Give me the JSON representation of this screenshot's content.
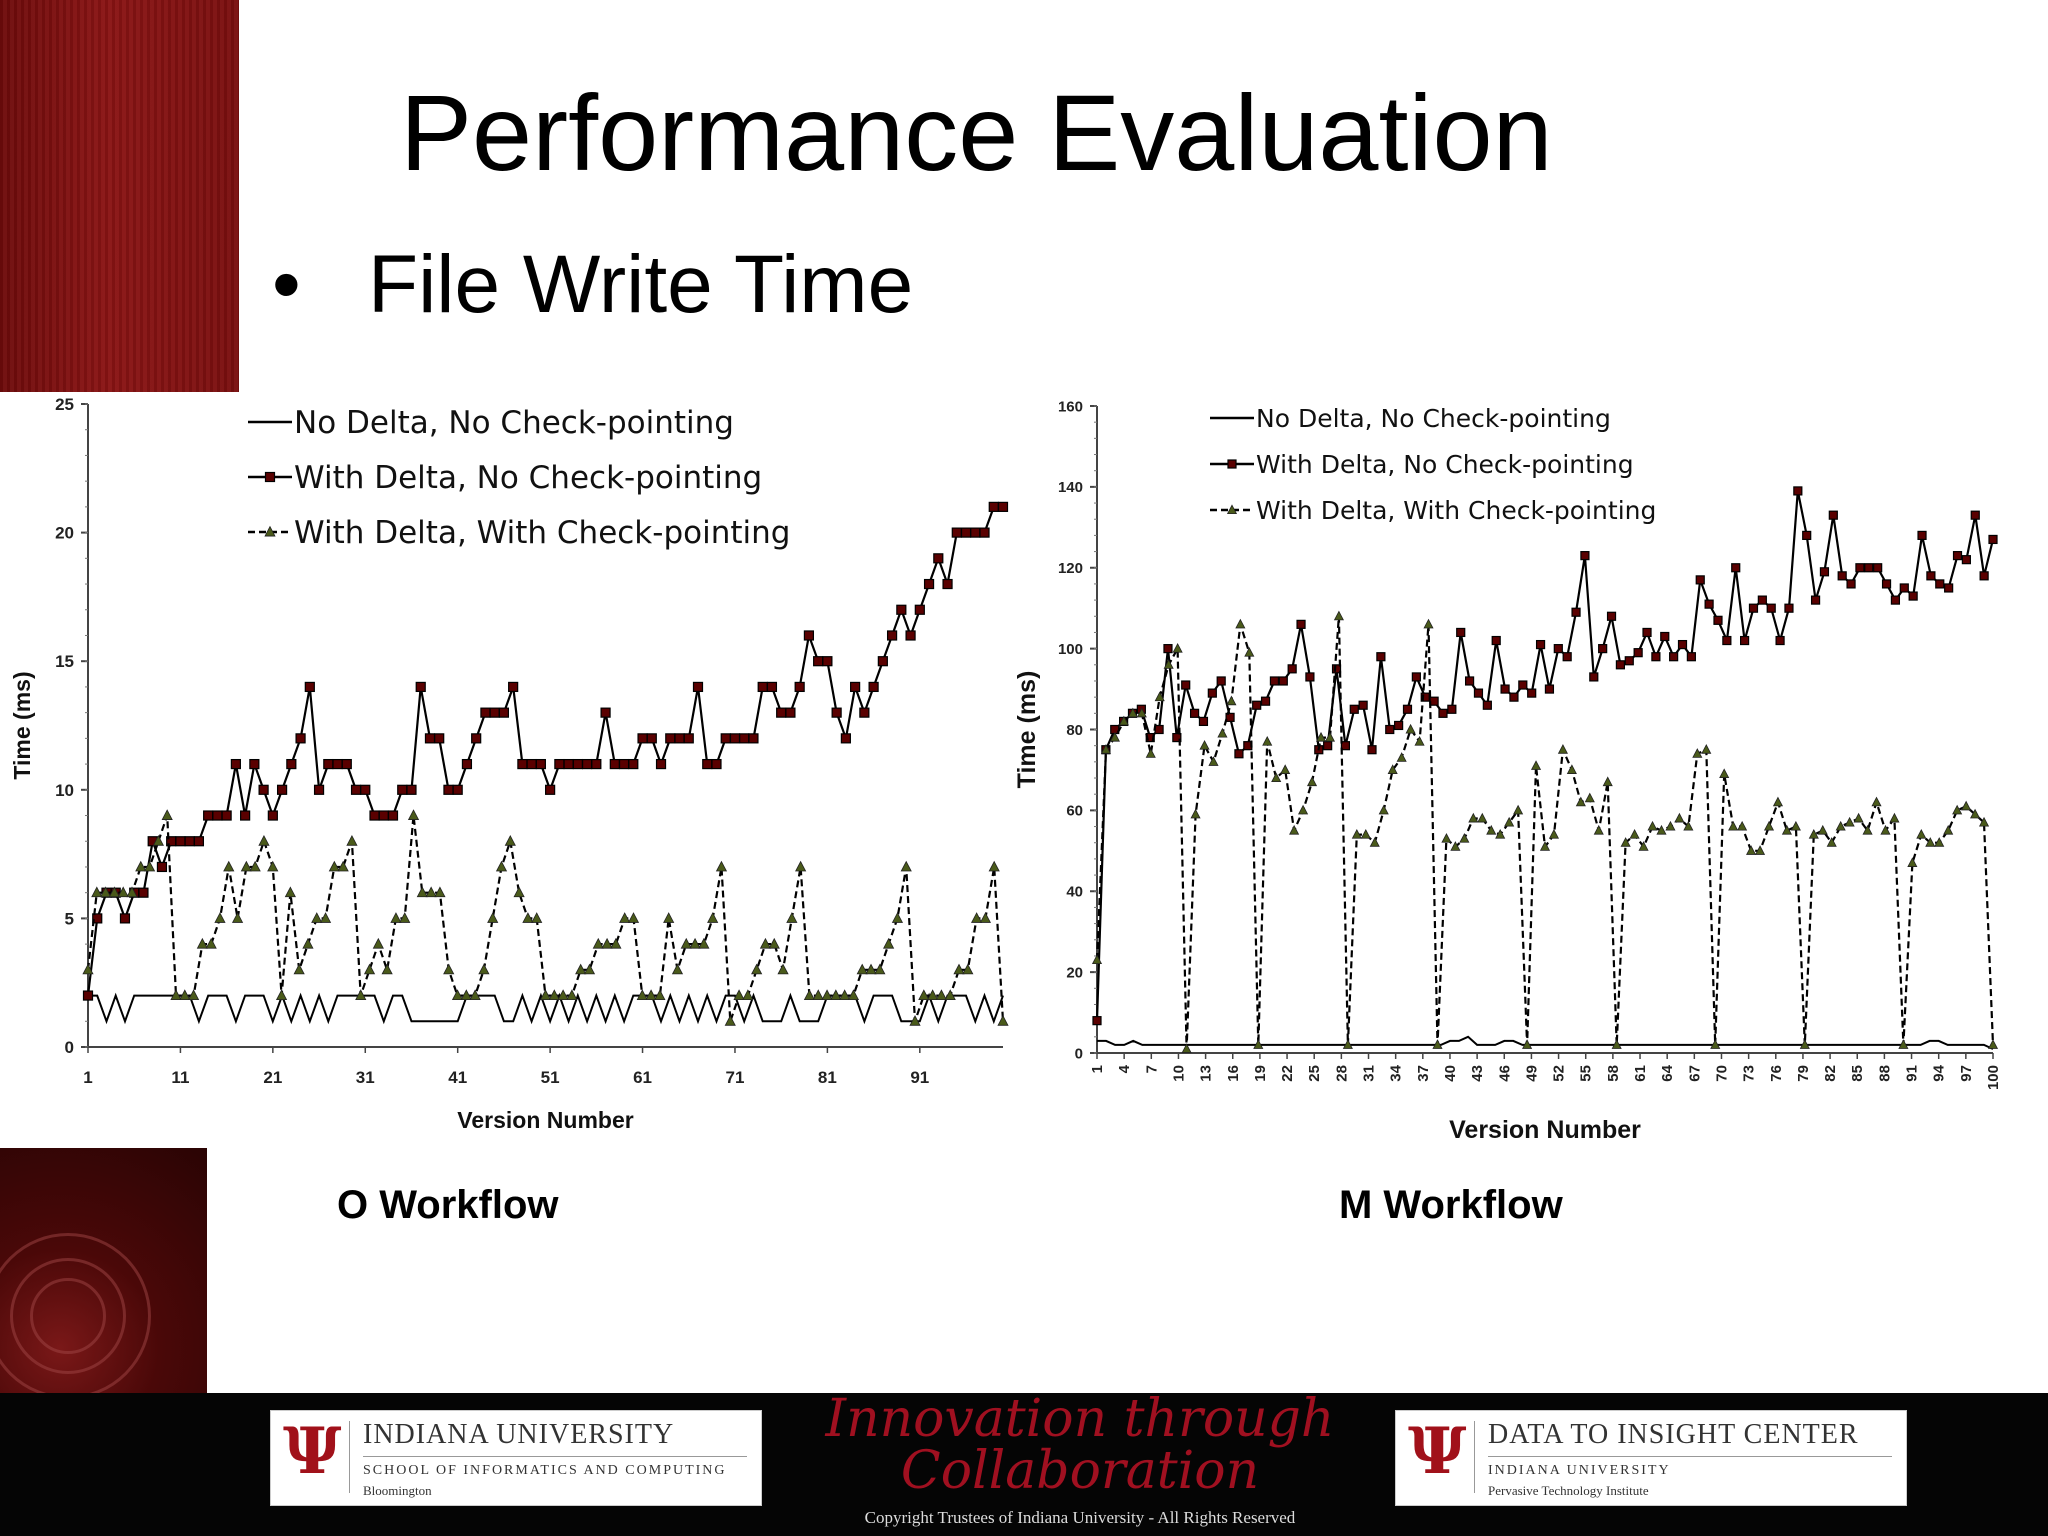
{
  "slide": {
    "title": "Performance Evaluation",
    "bullet": "File Write Time",
    "caption_left": "O Workflow",
    "caption_right": "M Workflow"
  },
  "colors": {
    "brand_red": "#7d1010",
    "series_square": "#5a0000",
    "series_triangle": "#4a5a1a",
    "footer_bg": "#050505"
  },
  "footer": {
    "iu_line1": "INDIANA UNIVERSITY",
    "iu_line2": "SCHOOL OF INFORMATICS AND COMPUTING",
    "iu_line3": "Bloomington",
    "tagline_line1": "Innovation through",
    "tagline_line2": "Collaboration",
    "copyright": "Copyright Trustees of Indiana University - All Rights Reserved",
    "dic_line1": "DATA TO INSIGHT CENTER",
    "dic_line2": "INDIANA UNIVERSITY",
    "dic_line3": "Pervasive Technology Institute",
    "trident_glyph": "Ψ"
  },
  "chart_data": [
    {
      "type": "line",
      "title": "",
      "xlabel": "Version Number",
      "ylabel": "Time (ms)",
      "xlim": [
        1,
        100
      ],
      "ylim": [
        0,
        25
      ],
      "yticks": [
        0,
        5,
        10,
        15,
        20,
        25
      ],
      "xtick_labels": [
        "1",
        "11",
        "21",
        "31",
        "41",
        "51",
        "61",
        "71",
        "81",
        "91"
      ],
      "legend_position": "top-left",
      "series": [
        {
          "name": "No Delta, No Check-pointing",
          "marker": "none",
          "dash": "solid",
          "values": [
            2,
            2,
            1,
            2,
            1,
            2,
            2,
            2,
            2,
            2,
            2,
            2,
            1,
            2,
            2,
            2,
            1,
            2,
            2,
            2,
            1,
            2,
            1,
            2,
            1,
            2,
            1,
            2,
            2,
            2,
            2,
            2,
            1,
            2,
            2,
            1,
            1,
            1,
            1,
            1,
            1,
            2,
            2,
            2,
            2,
            1,
            1,
            2,
            1,
            2,
            1,
            2,
            1,
            2,
            1,
            2,
            1,
            2,
            1,
            2,
            2,
            2,
            1,
            2,
            1,
            2,
            1,
            2,
            1,
            2,
            2,
            1,
            2,
            1,
            1,
            1,
            2,
            1,
            1,
            1,
            2,
            2,
            2,
            2,
            1,
            2,
            2,
            2,
            1,
            1,
            1,
            2,
            1,
            2,
            2,
            2,
            1,
            2,
            1,
            2
          ]
        },
        {
          "name": "With Delta, No Check-pointing",
          "marker": "square",
          "dash": "solid",
          "values": [
            2,
            5,
            6,
            6,
            5,
            6,
            6,
            8,
            7,
            8,
            8,
            8,
            8,
            9,
            9,
            9,
            11,
            9,
            11,
            10,
            9,
            10,
            11,
            12,
            14,
            10,
            11,
            11,
            11,
            10,
            10,
            9,
            9,
            9,
            10,
            10,
            14,
            12,
            12,
            10,
            10,
            11,
            12,
            13,
            13,
            13,
            14,
            11,
            11,
            11,
            10,
            11,
            11,
            11,
            11,
            11,
            13,
            11,
            11,
            11,
            12,
            12,
            11,
            12,
            12,
            12,
            14,
            11,
            11,
            12,
            12,
            12,
            12,
            14,
            14,
            13,
            13,
            14,
            16,
            15,
            15,
            13,
            12,
            14,
            13,
            14,
            15,
            16,
            17,
            16,
            17,
            18,
            19,
            18,
            20,
            20,
            20,
            20,
            21,
            21
          ]
        },
        {
          "name": "With Delta, With Check-pointing",
          "marker": "triangle",
          "dash": "dashed",
          "values": [
            3,
            6,
            6,
            6,
            6,
            6,
            7,
            7,
            8,
            9,
            2,
            2,
            2,
            4,
            4,
            5,
            7,
            5,
            7,
            7,
            8,
            7,
            2,
            6,
            3,
            4,
            5,
            5,
            7,
            7,
            8,
            2,
            3,
            4,
            3,
            5,
            5,
            9,
            6,
            6,
            6,
            3,
            2,
            2,
            2,
            3,
            5,
            7,
            8,
            6,
            5,
            5,
            2,
            2,
            2,
            2,
            3,
            3,
            4,
            4,
            4,
            5,
            5,
            2,
            2,
            2,
            5,
            3,
            4,
            4,
            4,
            5,
            7,
            1,
            2,
            2,
            3,
            4,
            4,
            3,
            5,
            7,
            2,
            2,
            2,
            2,
            2,
            2,
            3,
            3,
            3,
            4,
            5,
            7,
            1,
            2,
            2,
            2,
            2,
            3,
            3,
            5,
            5,
            7,
            1
          ]
        }
      ]
    },
    {
      "type": "line",
      "title": "",
      "xlabel": "Version Number",
      "ylabel": "Time (ms)",
      "xlim": [
        1,
        100
      ],
      "ylim": [
        0,
        160
      ],
      "yticks": [
        0,
        20,
        40,
        60,
        80,
        100,
        120,
        140,
        160
      ],
      "xtick_labels": [
        "1",
        "4",
        "7",
        "10",
        "13",
        "16",
        "19",
        "22",
        "25",
        "28",
        "31",
        "34",
        "37",
        "40",
        "43",
        "46",
        "49",
        "52",
        "55",
        "58",
        "61",
        "64",
        "67",
        "70",
        "73",
        "76",
        "79",
        "82",
        "85",
        "88",
        "91",
        "94",
        "97",
        "100"
      ],
      "legend_position": "top-left",
      "series": [
        {
          "name": "No Delta, No Check-pointing",
          "marker": "none",
          "dash": "solid",
          "values": [
            3,
            3,
            2,
            2,
            3,
            2,
            2,
            2,
            2,
            2,
            2,
            2,
            2,
            2,
            2,
            2,
            2,
            2,
            2,
            2,
            2,
            2,
            2,
            2,
            2,
            2,
            2,
            2,
            2,
            2,
            2,
            2,
            2,
            2,
            2,
            2,
            2,
            2,
            2,
            3,
            3,
            4,
            2,
            2,
            2,
            3,
            3,
            2,
            2,
            2,
            2,
            2,
            2,
            2,
            2,
            2,
            2,
            2,
            2,
            2,
            2,
            2,
            2,
            2,
            2,
            2,
            2,
            2,
            2,
            2,
            2,
            2,
            2,
            2,
            2,
            2,
            2,
            2,
            2,
            2,
            2,
            2,
            2,
            2,
            2,
            2,
            2,
            2,
            2,
            2,
            2,
            2,
            3,
            3,
            2,
            2,
            2,
            2,
            2,
            1
          ]
        },
        {
          "name": "With Delta, No Check-pointing",
          "marker": "square",
          "dash": "solid",
          "values": [
            8,
            75,
            80,
            82,
            84,
            85,
            78,
            80,
            100,
            78,
            91,
            84,
            82,
            89,
            92,
            83,
            74,
            76,
            86,
            87,
            92,
            92,
            95,
            106,
            93,
            75,
            76,
            95,
            76,
            85,
            86,
            75,
            98,
            80,
            81,
            85,
            93,
            88,
            87,
            84,
            85,
            104,
            92,
            89,
            86,
            102,
            90,
            88,
            91,
            89,
            101,
            90,
            100,
            98,
            109,
            123,
            93,
            100,
            108,
            96,
            97,
            99,
            104,
            98,
            103,
            98,
            101,
            98,
            117,
            111,
            107,
            102,
            120,
            102,
            110,
            112,
            110,
            102,
            110,
            139,
            128,
            112,
            119,
            133,
            118,
            116,
            120,
            120,
            120,
            116,
            112,
            115,
            113,
            128,
            118,
            116,
            115,
            123,
            122,
            133,
            118,
            127
          ]
        },
        {
          "name": "With Delta, With Check-pointing",
          "marker": "triangle",
          "dash": "dashed",
          "values": [
            23,
            75,
            78,
            82,
            84,
            84,
            74,
            88,
            96,
            100,
            1,
            59,
            76,
            72,
            79,
            87,
            106,
            99,
            2,
            77,
            68,
            70,
            55,
            60,
            67,
            78,
            78,
            108,
            2,
            54,
            54,
            52,
            60,
            70,
            73,
            80,
            77,
            106,
            2,
            53,
            51,
            53,
            58,
            58,
            55,
            54,
            57,
            60,
            2,
            71,
            51,
            54,
            75,
            70,
            62,
            63,
            55,
            67,
            2,
            52,
            54,
            51,
            56,
            55,
            56,
            58,
            56,
            74,
            75,
            2,
            69,
            56,
            56,
            50,
            50,
            56,
            62,
            55,
            56,
            2,
            54,
            55,
            52,
            56,
            57,
            58,
            55,
            62,
            55,
            58,
            2,
            47,
            54,
            52,
            52,
            55,
            60,
            61,
            59,
            57,
            2
          ]
        }
      ]
    }
  ]
}
